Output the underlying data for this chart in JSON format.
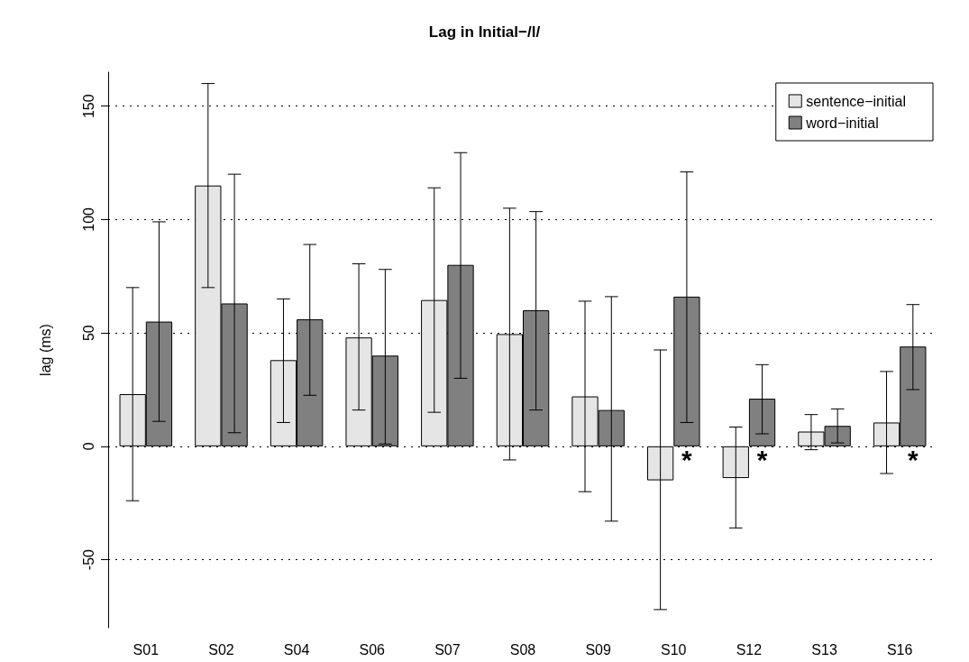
{
  "chart_data": {
    "type": "bar",
    "title": "Lag in Initial−/l/",
    "ylabel": "lag (ms)",
    "categories": [
      "S01",
      "S02",
      "S04",
      "S06",
      "S07",
      "S08",
      "S09",
      "S10",
      "S12",
      "S13",
      "S16"
    ],
    "series": [
      {
        "name": "sentence−initial",
        "color": "#e5e5e5",
        "values": [
          23,
          115,
          38,
          48,
          64.5,
          49.5,
          22,
          -15,
          -14,
          6.5,
          10.5
        ],
        "errors": [
          [
            -24,
            70
          ],
          [
            70,
            160
          ],
          [
            10.5,
            65
          ],
          [
            16,
            80.5
          ],
          [
            15,
            114
          ],
          [
            -6,
            105
          ],
          [
            -20,
            64
          ],
          [
            -72,
            42.5
          ],
          [
            -36,
            8.5
          ],
          [
            -1.5,
            14
          ],
          [
            -12,
            33
          ]
        ]
      },
      {
        "name": "word−initial",
        "color": "#808080",
        "values": [
          55,
          63,
          56,
          40,
          80,
          60,
          16,
          66,
          21,
          9,
          44
        ],
        "errors": [
          [
            11,
            99
          ],
          [
            6,
            120
          ],
          [
            22.5,
            89
          ],
          [
            1,
            78
          ],
          [
            30,
            129.5
          ],
          [
            16,
            103.5
          ],
          [
            -33,
            66
          ],
          [
            10.5,
            121
          ],
          [
            5.5,
            36
          ],
          [
            1.5,
            16.5
          ],
          [
            25,
            62.5
          ]
        ]
      }
    ],
    "annotations": [
      {
        "text": "*",
        "x": "S10",
        "y": 0
      },
      {
        "text": "*",
        "x": "S12",
        "y": 0
      },
      {
        "text": "*",
        "x": "S16",
        "y": 0
      }
    ],
    "ylim": [
      -80,
      165
    ],
    "yticks": [
      -50,
      0,
      50,
      100,
      150
    ],
    "grid": "y",
    "legend": "top right"
  }
}
